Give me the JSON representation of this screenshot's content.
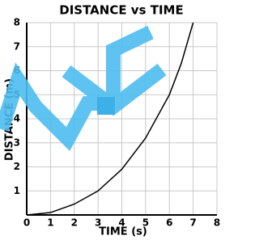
{
  "chart_data": {
    "type": "line",
    "title": "DISTANCE vs TIME",
    "x_label": "TIME (s)",
    "y_label": "DISTANCE (m)",
    "x": [
      0,
      1,
      2,
      3,
      4,
      5,
      6,
      6.5,
      7
    ],
    "series": [
      {
        "color": "#000000",
        "values": [
          0,
          0.1,
          0.45,
          1.0,
          1.9,
          3.2,
          5.0,
          6.3,
          8
        ]
      }
    ],
    "xlim": [
      0,
      8
    ],
    "ylim": [
      0,
      8
    ],
    "xticks": [
      0,
      1,
      2,
      3,
      4,
      5,
      6,
      7,
      8
    ],
    "yticks": [
      0,
      1,
      2,
      3,
      4,
      5,
      6,
      7,
      8
    ],
    "grid": true
  }
}
